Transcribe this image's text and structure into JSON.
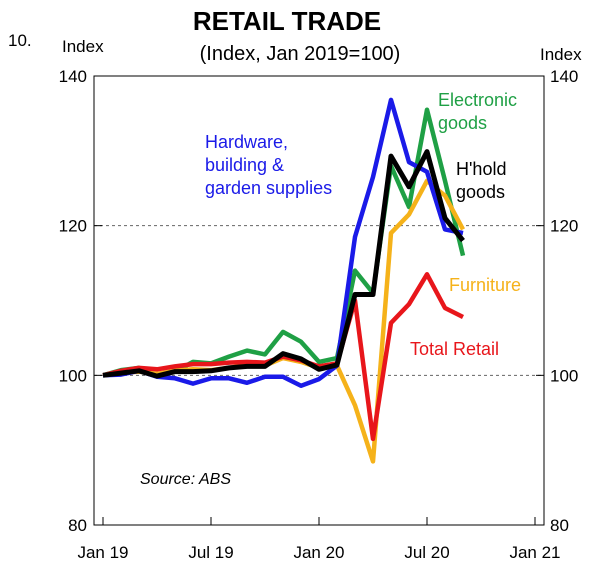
{
  "figure_number": "10.",
  "chart_data": {
    "type": "line",
    "title": "RETAIL TRADE",
    "subtitle": "(Index, Jan 2019=100)",
    "ylabel_left": "Index",
    "ylabel_right": "Index",
    "ylim": [
      80,
      140
    ],
    "yticks": [
      80,
      100,
      120,
      140
    ],
    "grid": "horizontal dashed at 120",
    "x_tick_labels": [
      "Jan 19",
      "Jul 19",
      "Jan 20",
      "Jul 20",
      "Jan 21"
    ],
    "x_tick_months": [
      0,
      6,
      12,
      18,
      24
    ],
    "x_range_months": [
      -0.5,
      24.5
    ],
    "source": "Source: ABS",
    "series": [
      {
        "name": "Electronic goods",
        "label_lines": [
          "Electronic",
          "goods"
        ],
        "color": "#1fa045",
        "values": [
          100,
          100.7,
          101,
          100,
          100.5,
          101.8,
          101.6,
          102.5,
          103.3,
          102.8,
          105.8,
          104.5,
          101.8,
          102.3,
          114,
          111,
          128,
          122.5,
          135.5,
          126,
          116
        ]
      },
      {
        "name": "Furniture",
        "label_lines": [
          "Furniture"
        ],
        "color": "#f5b21a",
        "values": [
          100,
          100.3,
          100.5,
          100.2,
          100.6,
          100.8,
          100.7,
          101,
          101.4,
          101.3,
          102.3,
          101.8,
          101,
          101.3,
          96,
          88.5,
          119,
          121.5,
          126,
          124,
          119.5
        ]
      },
      {
        "name": "Total Retail",
        "label_lines": [
          "Total Retail"
        ],
        "color": "#e8161b",
        "values": [
          100,
          100.6,
          101,
          100.8,
          101.2,
          101.5,
          101.5,
          101.7,
          101.8,
          101.7,
          102.5,
          102,
          101.2,
          101.6,
          110,
          91.5,
          107,
          109.5,
          113.5,
          109,
          107.8
        ]
      },
      {
        "name": "Hardware, building & garden supplies",
        "label_lines": [
          "Hardware,",
          "building &",
          "garden supplies"
        ],
        "color": "#1a1ae8",
        "values": [
          100,
          100.1,
          100.6,
          99.8,
          99.6,
          98.9,
          99.6,
          99.6,
          99,
          99.8,
          99.8,
          98.6,
          99.5,
          101.3,
          118.5,
          126.5,
          136.8,
          128.5,
          127.2,
          119.5,
          119
        ]
      },
      {
        "name": "H'hold goods",
        "label_lines": [
          "H'hold",
          "goods"
        ],
        "color": "#000000",
        "values": [
          100,
          100.3,
          100.6,
          99.9,
          100.5,
          100.5,
          100.6,
          101,
          101.2,
          101.2,
          102.9,
          102.2,
          100.8,
          101.4,
          110.8,
          110.8,
          129.3,
          125.2,
          129.9,
          121,
          118
        ]
      }
    ]
  }
}
